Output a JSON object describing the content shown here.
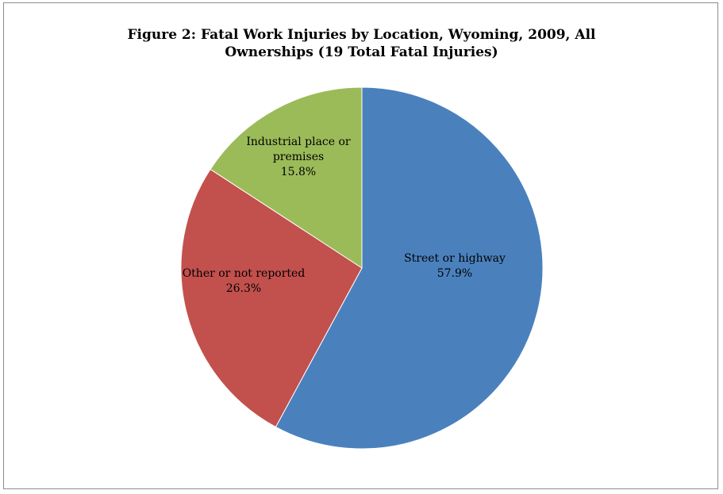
{
  "chart_data": {
    "type": "pie",
    "title_lines": [
      "Figure 2: Fatal Work Injuries by Location, Wyoming, 2009, All",
      "Ownerships (19 Total Fatal Injuries)"
    ],
    "slices": [
      {
        "label": "Street or highway",
        "value": 57.9,
        "display": "57.9%",
        "color": "#4a81bd"
      },
      {
        "label": "Other or not reported",
        "value": 26.3,
        "display": "26.3%",
        "color": "#c2504d"
      },
      {
        "label": "Industrial place or premises",
        "value": 15.8,
        "display": "15.8%",
        "color": "#9bbb59"
      }
    ],
    "slice_label_lines": [
      [
        "Street or highway",
        "57.9%"
      ],
      [
        "Other or not reported",
        "26.3%"
      ],
      [
        "Industrial place or",
        "premises",
        "15.8%"
      ]
    ],
    "start_angle": "12 o'clock",
    "direction": "clockwise",
    "legend": "none",
    "data_labels": "category name and percentage inside slices"
  }
}
